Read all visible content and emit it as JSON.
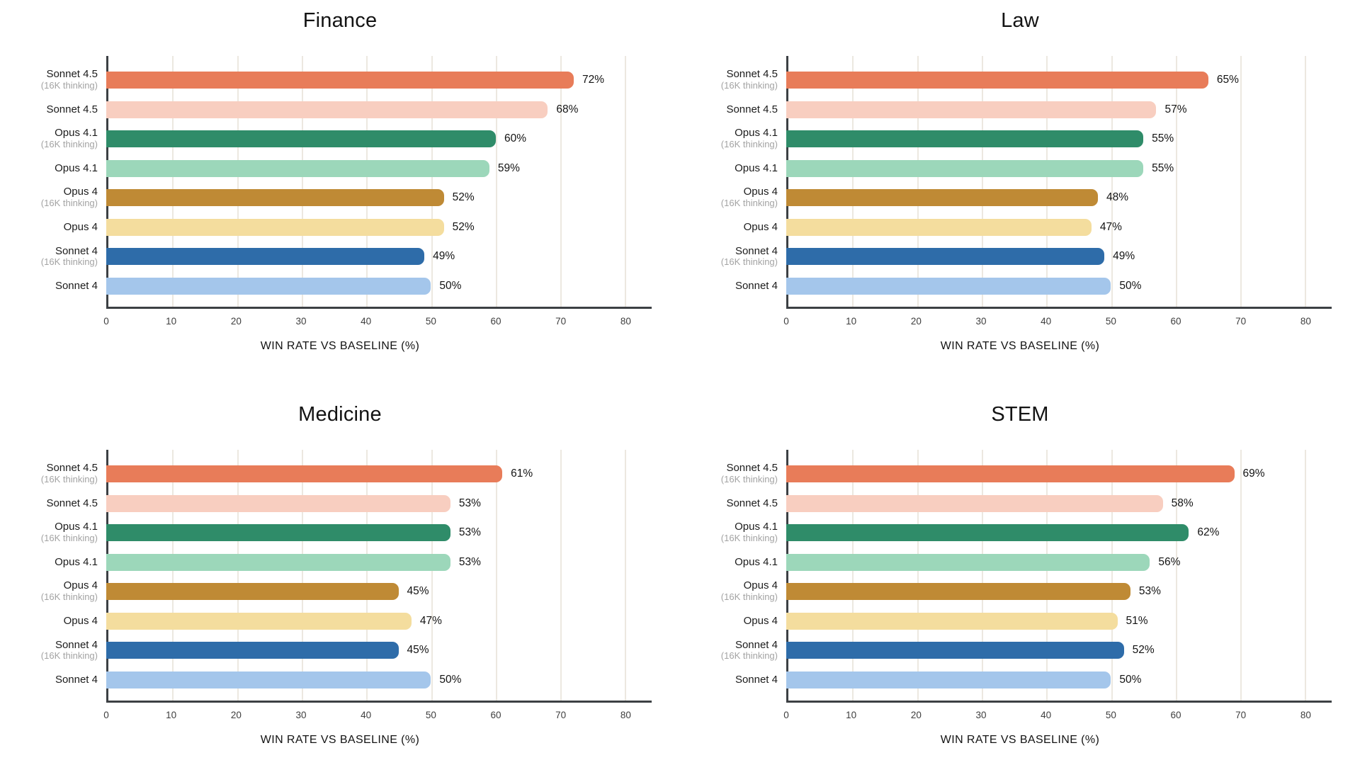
{
  "page": {
    "background": "#ffffff"
  },
  "axis": {
    "xlabel": "WIN RATE VS BASELINE (%)",
    "ticks": [
      0,
      10,
      20,
      30,
      40,
      50,
      60,
      70,
      80
    ],
    "x_max_units": 84,
    "spine_color": "#3c4044",
    "gridline_color": "#ece8e0",
    "tick_color": "#3e3e3e"
  },
  "models": [
    {
      "name": "Sonnet 4.5",
      "sub": "(16K thinking)",
      "color": "#e87c59"
    },
    {
      "name": "Sonnet 4.5",
      "sub": "",
      "color": "#f8cec0"
    },
    {
      "name": "Opus 4.1",
      "sub": "(16K thinking)",
      "color": "#2f8c69"
    },
    {
      "name": "Opus 4.1",
      "sub": "",
      "color": "#9cd7ba"
    },
    {
      "name": "Opus 4",
      "sub": "(16K thinking)",
      "color": "#bf8a35"
    },
    {
      "name": "Opus 4",
      "sub": "",
      "color": "#f4dd9e"
    },
    {
      "name": "Sonnet 4",
      "sub": "(16K thinking)",
      "color": "#2e6ca9"
    },
    {
      "name": "Sonnet 4",
      "sub": "",
      "color": "#a4c6eb"
    }
  ],
  "chart_data": [
    {
      "type": "bar",
      "orientation": "horizontal",
      "title": "Finance",
      "xlabel": "WIN RATE VS BASELINE (%)",
      "xlim": [
        0,
        80
      ],
      "xticks": [
        0,
        10,
        20,
        30,
        40,
        50,
        60,
        70,
        80
      ],
      "grid": true,
      "legend": false,
      "categories": [
        "Sonnet 4.5 (16K thinking)",
        "Sonnet 4.5",
        "Opus 4.1 (16K thinking)",
        "Opus 4.1",
        "Opus 4 (16K thinking)",
        "Opus 4",
        "Sonnet 4 (16K thinking)",
        "Sonnet 4"
      ],
      "values": [
        72,
        68,
        60,
        59,
        52,
        52,
        49,
        50
      ],
      "value_labels": [
        "72%",
        "68%",
        "60%",
        "59%",
        "52%",
        "52%",
        "49%",
        "50%"
      ]
    },
    {
      "type": "bar",
      "orientation": "horizontal",
      "title": "Law",
      "xlabel": "WIN RATE VS BASELINE (%)",
      "xlim": [
        0,
        80
      ],
      "xticks": [
        0,
        10,
        20,
        30,
        40,
        50,
        60,
        70,
        80
      ],
      "grid": true,
      "legend": false,
      "categories": [
        "Sonnet 4.5 (16K thinking)",
        "Sonnet 4.5",
        "Opus 4.1 (16K thinking)",
        "Opus 4.1",
        "Opus 4 (16K thinking)",
        "Opus 4",
        "Sonnet 4 (16K thinking)",
        "Sonnet 4"
      ],
      "values": [
        65,
        57,
        55,
        55,
        48,
        47,
        49,
        50
      ],
      "value_labels": [
        "65%",
        "57%",
        "55%",
        "55%",
        "48%",
        "47%",
        "49%",
        "50%"
      ]
    },
    {
      "type": "bar",
      "orientation": "horizontal",
      "title": "Medicine",
      "xlabel": "WIN RATE VS BASELINE (%)",
      "xlim": [
        0,
        80
      ],
      "xticks": [
        0,
        10,
        20,
        30,
        40,
        50,
        60,
        70,
        80
      ],
      "grid": true,
      "legend": false,
      "categories": [
        "Sonnet 4.5 (16K thinking)",
        "Sonnet 4.5",
        "Opus 4.1 (16K thinking)",
        "Opus 4.1",
        "Opus 4 (16K thinking)",
        "Opus 4",
        "Sonnet 4 (16K thinking)",
        "Sonnet 4"
      ],
      "values": [
        61,
        53,
        53,
        53,
        45,
        47,
        45,
        50
      ],
      "value_labels": [
        "61%",
        "53%",
        "53%",
        "53%",
        "45%",
        "47%",
        "45%",
        "50%"
      ]
    },
    {
      "type": "bar",
      "orientation": "horizontal",
      "title": "STEM",
      "xlabel": "WIN RATE VS BASELINE (%)",
      "xlim": [
        0,
        80
      ],
      "xticks": [
        0,
        10,
        20,
        30,
        40,
        50,
        60,
        70,
        80
      ],
      "grid": true,
      "legend": false,
      "categories": [
        "Sonnet 4.5 (16K thinking)",
        "Sonnet 4.5",
        "Opus 4.1 (16K thinking)",
        "Opus 4.1",
        "Opus 4 (16K thinking)",
        "Opus 4",
        "Sonnet 4 (16K thinking)",
        "Sonnet 4"
      ],
      "values": [
        69,
        58,
        62,
        56,
        53,
        51,
        52,
        50
      ],
      "value_labels": [
        "69%",
        "58%",
        "62%",
        "56%",
        "53%",
        "51%",
        "52%",
        "50%"
      ]
    }
  ]
}
